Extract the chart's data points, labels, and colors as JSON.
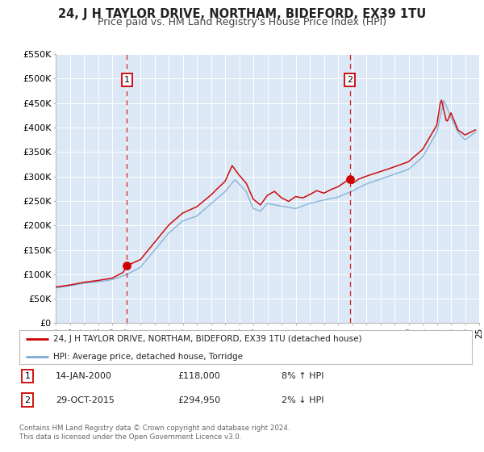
{
  "title": "24, J H TAYLOR DRIVE, NORTHAM, BIDEFORD, EX39 1TU",
  "subtitle": "Price paid vs. HM Land Registry's House Price Index (HPI)",
  "legend_line1": "24, J H TAYLOR DRIVE, NORTHAM, BIDEFORD, EX39 1TU (detached house)",
  "legend_line2": "HPI: Average price, detached house, Torridge",
  "annotation1_label": "1",
  "annotation1_date": "14-JAN-2000",
  "annotation1_price": "£118,000",
  "annotation1_hpi": "8% ↑ HPI",
  "annotation2_label": "2",
  "annotation2_date": "29-OCT-2015",
  "annotation2_price": "£294,950",
  "annotation2_hpi": "2% ↓ HPI",
  "footnote": "Contains HM Land Registry data © Crown copyright and database right 2024.\nThis data is licensed under the Open Government Licence v3.0.",
  "xmin": 1995,
  "xmax": 2025,
  "ymin": 0,
  "ymax": 550000,
  "yticks": [
    0,
    50000,
    100000,
    150000,
    200000,
    250000,
    300000,
    350000,
    400000,
    450000,
    500000,
    550000
  ],
  "ytick_labels": [
    "£0",
    "£50K",
    "£100K",
    "£150K",
    "£200K",
    "£250K",
    "£300K",
    "£350K",
    "£400K",
    "£450K",
    "£500K",
    "£550K"
  ],
  "sale1_x": 2000.04,
  "sale1_y": 118000,
  "sale2_x": 2015.83,
  "sale2_y": 294950,
  "red_line_color": "#cc0000",
  "blue_line_color": "#7dadd4",
  "dot_color": "#cc0000",
  "vline_color": "#cc0000",
  "background_color": "#ffffff",
  "plot_bg_color": "#dce8f5",
  "grid_color": "#ffffff",
  "title_fontsize": 10.5,
  "subtitle_fontsize": 9
}
